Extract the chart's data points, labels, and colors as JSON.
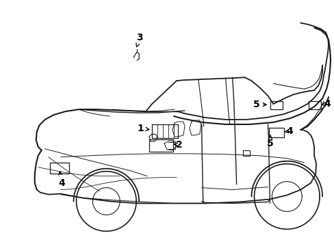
{
  "bg_color": "#ffffff",
  "line_color": "#1a1a1a",
  "fig_width": 4.89,
  "fig_height": 3.6,
  "dpi": 100,
  "label_fs": 10,
  "arrow_lw": 0.9
}
